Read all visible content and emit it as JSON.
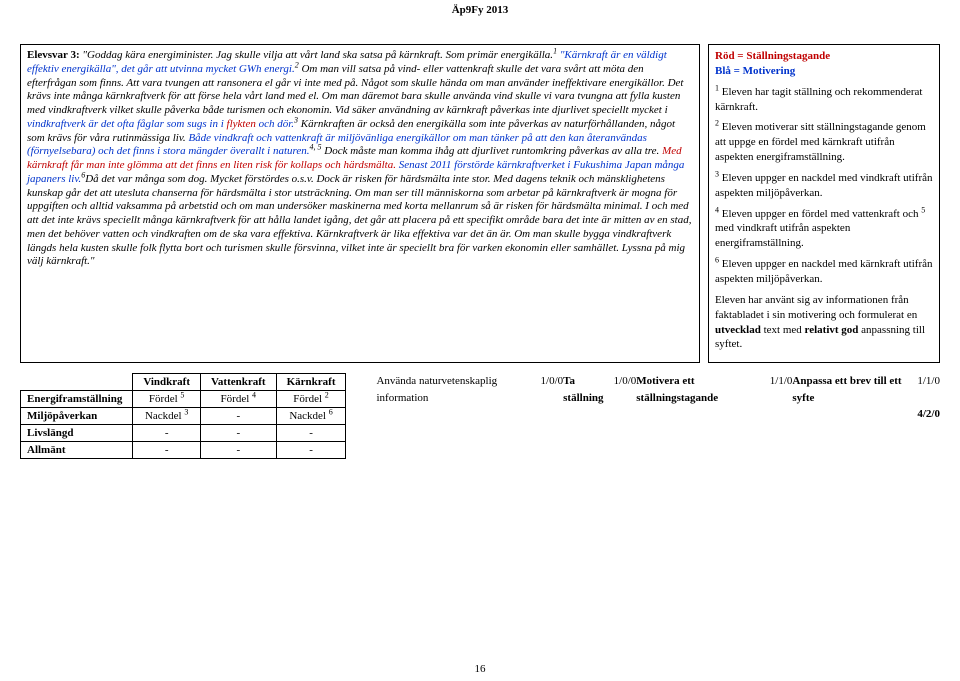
{
  "header": "Äp9Fy 2013",
  "essay": {
    "title": "Elevsvar 3:",
    "text_html": "\"Goddag kära energiminister. Jag skulle vilja att vårt land ska satsa på kärnkraft. Som primär energikälla.<span class='sup'>1</span> <span class='blue italic'>\"Kärnkraft är en väldigt effektiv energikälla\", det går att utvinna mycket GWh energi.</span><span class='sup'>2</span> Om man vill satsa på vind- eller vattenkraft skulle det vara svårt att möta den efterfrågan som finns. Att vara tvungen att ransonera el går vi inte med på. Något som skulle hända om man använder ineffektivare energikällor. Det krävs inte många kärnkraftverk för att förse hela vårt land med el. Om man däremot bara skulle använda vind skulle vi vara tvungna att fylla kusten med vindkraftverk vilket skulle påverka både turismen och ekonomin. Vid säker användning av kärnkraft påverkas inte djurlivet speciellt mycket i <span class='blue italic'>vindkraftverk är det ofta fåglar som sugs in i <span class='red'>flykten</span> och dör.</span><span class='sup'>3</span> Kärnkraften är också den energikälla som inte påverkas av naturförhållanden, något som krävs för våra rutinmässiga liv. <span class='blue italic'>Både vindkraft och vattenkraft är miljövänliga energikällor om man tänker på att den kan återanvändas (förnyelsebara) och det finns i stora mängder överallt i naturen.</span><span class='sup'>4, 5</span> Dock måste man komma ihåg att djurlivet runtomkring påverkas av alla tre. <span class='red italic'>Med kärnkraft får man inte glömma att det finns en liten risk för kollaps och härdsmälta. <span class='blue italic'>Senast 2011 förstörde kärnkraftverket i Fukushima Japan många japaners liv.</span></span><span class='sup'>6</span>Då det var många som dog. Mycket förstördes o.s.v. Dock är risken för härdsmälta inte stor. Med dagens teknik och mänsklighetens kunskap går det att utesluta chanserna för härdsmälta i stor utsträckning. Om man ser till människorna som arbetar på kärnkraftverk är mogna för uppgiften och alltid vaksamma på arbetstid och om man undersöker maskinerna med korta mellanrum så är risken för härdsmälta minimal. I och med att det inte krävs speciellt många kärnkraftverk för att hålla landet igång, det går att placera på ett specifikt område bara det inte är mitten av en stad, men det behöver vatten och vindkraften om de ska vara effektiva. Kärnkraftverk är lika effektiva var det än är. Om man skulle bygga vindkraftverk längds hela kusten skulle folk flytta bort och turismen skulle försvinna, vilket inte är speciellt bra för varken ekonomin eller samhället. Lyssna på mig välj kärnkraft.\""
  },
  "legend": {
    "red_label": "Röd = Ställningstagande",
    "blue_label": "Blå = Motivering"
  },
  "notes": [
    {
      "n": "1",
      "text": "Eleven har tagit ställning och rekommenderat kärnkraft."
    },
    {
      "n": "2",
      "text": "Eleven motiverar sitt ställningstagande genom att uppge en fördel med kärnkraft utifrån aspekten energiframställning."
    },
    {
      "n": "3",
      "text": "Eleven uppger en nackdel med vindkraft utifrån aspekten miljöpåverkan."
    },
    {
      "n": "4",
      "text_html": "Eleven uppger en fördel med vattenkraft och <span class='sup'>5</span> med vindkraft utifrån aspekten energiframställning."
    },
    {
      "n": "6",
      "text": "Eleven uppger en nackdel med kärnkraft utifrån aspekten miljöpåverkan."
    }
  ],
  "notes_tail": "Eleven har använt sig av informationen från faktabladet i sin motivering och formulerat en <b>utvecklad</b> text med <b>relativt god</b> anpassning till syftet.",
  "rubric": {
    "cols": [
      "Vindkraft",
      "Vattenkraft",
      "Kärnkraft"
    ],
    "rows": [
      {
        "label": "Energiframställning",
        "cells": [
          {
            "t": "Fördel",
            "s": "5"
          },
          {
            "t": "Fördel",
            "s": "4"
          },
          {
            "t": "Fördel",
            "s": "2"
          }
        ]
      },
      {
        "label": "Miljöpåverkan",
        "cells": [
          {
            "t": "Nackdel",
            "s": "3"
          },
          {
            "t": "-",
            "s": ""
          },
          {
            "t": "Nackdel",
            "s": "6"
          }
        ]
      },
      {
        "label": "Livslängd",
        "cells": [
          {
            "t": "-",
            "s": ""
          },
          {
            "t": "-",
            "s": ""
          },
          {
            "t": "-",
            "s": ""
          }
        ]
      },
      {
        "label": "Allmänt",
        "cells": [
          {
            "t": "-",
            "s": ""
          },
          {
            "t": "-",
            "s": ""
          },
          {
            "t": "-",
            "s": ""
          }
        ]
      }
    ]
  },
  "scores": [
    {
      "label": "Använda naturvetenskaplig information",
      "val": "1/0/0",
      "bold": false
    },
    {
      "label": "Ta ställning",
      "val": "1/0/0",
      "bold": true
    },
    {
      "label": "Motivera ett ställningstagande",
      "val": "1/1/0",
      "bold": true
    },
    {
      "label": "Anpassa ett brev till ett syfte",
      "val": "1/1/0",
      "bold": true
    }
  ],
  "total": "4/2/0",
  "page_number": "16"
}
